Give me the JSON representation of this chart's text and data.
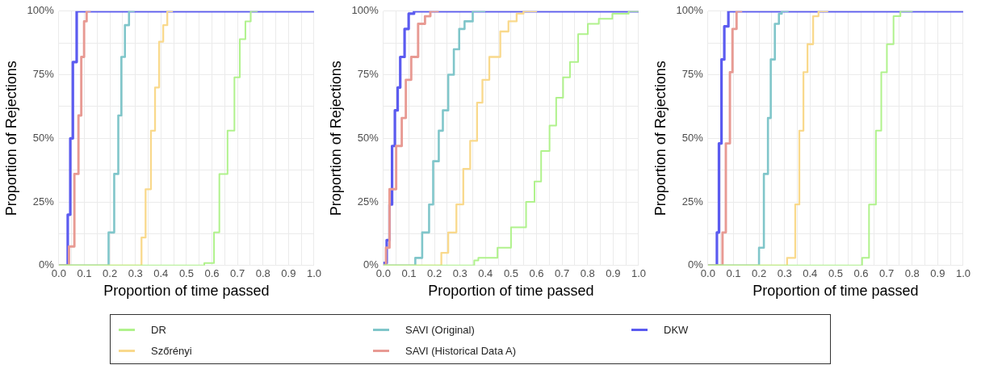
{
  "chart_data": [
    {
      "type": "step",
      "xlabel": "Proportion of time passed",
      "ylabel": "Proportion of Rejections",
      "xlim": [
        0,
        1
      ],
      "ylim": [
        0,
        100
      ],
      "grid": true,
      "legend": "bottom",
      "line_style": "solid",
      "marker": "none",
      "xticks": [
        {
          "value": 0,
          "label": "0.0"
        },
        {
          "value": 0.05,
          "label": null
        },
        {
          "value": 0.1,
          "label": "0.1"
        },
        {
          "value": 0.15,
          "label": null
        },
        {
          "value": 0.2,
          "label": "0.2"
        },
        {
          "value": 0.25,
          "label": null
        },
        {
          "value": 0.3,
          "label": "0.3"
        },
        {
          "value": 0.35,
          "label": null
        },
        {
          "value": 0.4,
          "label": "0.4"
        },
        {
          "value": 0.45,
          "label": null
        },
        {
          "value": 0.5,
          "label": "0.5"
        },
        {
          "value": 0.55,
          "label": null
        },
        {
          "value": 0.6,
          "label": "0.6"
        },
        {
          "value": 0.65,
          "label": null
        },
        {
          "value": 0.7,
          "label": "0.7"
        },
        {
          "value": 0.75,
          "label": null
        },
        {
          "value": 0.8,
          "label": "0.8"
        },
        {
          "value": 0.85,
          "label": null
        },
        {
          "value": 0.9,
          "label": "0.9"
        },
        {
          "value": 0.95,
          "label": null
        },
        {
          "value": 1,
          "label": "1.0"
        }
      ],
      "yticks": [
        {
          "value": 0,
          "label": "0%"
        },
        {
          "value": 12.5,
          "label": null
        },
        {
          "value": 25,
          "label": "25%"
        },
        {
          "value": 37.5,
          "label": null
        },
        {
          "value": 50,
          "label": "50%"
        },
        {
          "value": 62.5,
          "label": null
        },
        {
          "value": 75,
          "label": "75%"
        },
        {
          "value": 87.5,
          "label": null
        },
        {
          "value": 100,
          "label": "100%"
        }
      ],
      "series": [
        {
          "name": "DR",
          "color": "#b0f28c",
          "x": [
            0,
            0.57,
            0.57,
            0.608,
            0.629,
            0.661,
            0.688,
            0.709,
            0.731,
            0.752,
            0.779
          ],
          "values": [
            0,
            0,
            1,
            1,
            13,
            36,
            53,
            74,
            89,
            96,
            100
          ]
        },
        {
          "name": "Szőrényi",
          "color": "#f9d98c",
          "x": [
            0,
            0.324,
            0.34,
            0.361,
            0.377,
            0.393,
            0.409,
            0.425,
            0.447
          ],
          "values": [
            0,
            0,
            11,
            30,
            53,
            70,
            88,
            94.5,
            100
          ]
        },
        {
          "name": "SAVI (Original)",
          "color": "#80c6ca",
          "x": [
            0,
            0.195,
            0.217,
            0.233,
            0.245,
            0.259,
            0.275,
            0.297
          ],
          "values": [
            0,
            0,
            13,
            36,
            59,
            82,
            94.5,
            100
          ]
        },
        {
          "name": "SAVI (Historical Data A)",
          "color": "#e89a93",
          "x": [
            0,
            0.04,
            0.061,
            0.077,
            0.088,
            0.099,
            0.109,
            0.125
          ],
          "values": [
            0,
            0,
            7.5,
            36,
            59,
            82,
            96,
            100
          ]
        },
        {
          "name": "DKW",
          "color": "#5b5bf0",
          "x": [
            0,
            0.035,
            0.045,
            0.055,
            0.07,
            0.08,
            1
          ],
          "values": [
            0,
            0,
            20,
            50,
            80,
            100,
            100
          ]
        }
      ]
    },
    {
      "type": "step",
      "xlabel": "Proportion of time passed",
      "ylabel": "Proportion of Rejections",
      "xlim": [
        0,
        1
      ],
      "ylim": [
        0,
        100
      ],
      "grid": true,
      "line_style": "solid",
      "marker": "none",
      "xticks": [
        {
          "value": 0,
          "label": "0.0"
        },
        {
          "value": 0.05,
          "label": null
        },
        {
          "value": 0.1,
          "label": "0.1"
        },
        {
          "value": 0.15,
          "label": null
        },
        {
          "value": 0.2,
          "label": "0.2"
        },
        {
          "value": 0.25,
          "label": null
        },
        {
          "value": 0.3,
          "label": "0.3"
        },
        {
          "value": 0.35,
          "label": null
        },
        {
          "value": 0.4,
          "label": "0.4"
        },
        {
          "value": 0.45,
          "label": null
        },
        {
          "value": 0.5,
          "label": "0.5"
        },
        {
          "value": 0.55,
          "label": null
        },
        {
          "value": 0.6,
          "label": "0.6"
        },
        {
          "value": 0.65,
          "label": null
        },
        {
          "value": 0.7,
          "label": "0.7"
        },
        {
          "value": 0.75,
          "label": null
        },
        {
          "value": 0.8,
          "label": "0.8"
        },
        {
          "value": 0.85,
          "label": null
        },
        {
          "value": 0.9,
          "label": "0.9"
        },
        {
          "value": 0.95,
          "label": null
        },
        {
          "value": 1,
          "label": "1.0"
        }
      ],
      "yticks": [
        {
          "value": 0,
          "label": "0%"
        },
        {
          "value": 12.5,
          "label": null
        },
        {
          "value": 25,
          "label": "25%"
        },
        {
          "value": 37.5,
          "label": null
        },
        {
          "value": 50,
          "label": "50%"
        },
        {
          "value": 62.5,
          "label": null
        },
        {
          "value": 75,
          "label": "75%"
        },
        {
          "value": 87.5,
          "label": null
        },
        {
          "value": 100,
          "label": "100%"
        }
      ],
      "series": [
        {
          "color": "#b0f28c",
          "x": [
            0,
            0.356,
            0.372,
            0.447,
            0.5,
            0.559,
            0.592,
            0.618,
            0.651,
            0.677,
            0.704,
            0.731,
            0.763,
            0.801,
            0.844,
            0.897,
            0.961,
            1
          ],
          "values": [
            0,
            0,
            2,
            3,
            7,
            15,
            25,
            33,
            45,
            55,
            66,
            74,
            80,
            91,
            95,
            97,
            99,
            100
          ]
        },
        {
          "color": "#f9d98c",
          "x": [
            0,
            0.227,
            0.254,
            0.286,
            0.313,
            0.34,
            0.367,
            0.388,
            0.415,
            0.458,
            0.49,
            0.522,
            0.549,
            0.602
          ],
          "values": [
            0,
            0,
            5,
            13,
            24,
            38,
            49,
            64,
            73,
            82,
            92,
            96,
            99,
            100
          ]
        },
        {
          "color": "#80c6ca",
          "x": [
            0,
            0.125,
            0.152,
            0.179,
            0.195,
            0.217,
            0.233,
            0.254,
            0.276,
            0.297,
            0.318,
            0.35,
            0.399
          ],
          "values": [
            0,
            0,
            3,
            13,
            24,
            41,
            53,
            61,
            75,
            85,
            93,
            96,
            100
          ]
        },
        {
          "color": "#e89a93",
          "x": [
            0,
            0.01,
            0.024,
            0.05,
            0.072,
            0.088,
            0.109,
            0.136,
            0.163,
            0.184,
            0.217
          ],
          "values": [
            0,
            0,
            7,
            30,
            47,
            58,
            73,
            82,
            95,
            98,
            100
          ]
        },
        {
          "color": "#5b5bf0",
          "x": [
            0,
            0.013,
            0.024,
            0.034,
            0.045,
            0.056,
            0.066,
            0.083,
            0.099,
            0.12,
            0.174,
            1
          ],
          "values": [
            0,
            1,
            10,
            24,
            47,
            61,
            70,
            82,
            93,
            99,
            100,
            100
          ]
        }
      ]
    },
    {
      "type": "step",
      "xlabel": "Proportion of time passed",
      "ylabel": "Proportion of Rejections",
      "xlim": [
        0,
        1
      ],
      "ylim": [
        0,
        100
      ],
      "grid": true,
      "line_style": "solid",
      "marker": "none",
      "xticks": [
        {
          "value": 0,
          "label": "0.0"
        },
        {
          "value": 0.05,
          "label": null
        },
        {
          "value": 0.1,
          "label": "0.1"
        },
        {
          "value": 0.15,
          "label": null
        },
        {
          "value": 0.2,
          "label": "0.2"
        },
        {
          "value": 0.25,
          "label": null
        },
        {
          "value": 0.3,
          "label": "0.3"
        },
        {
          "value": 0.35,
          "label": null
        },
        {
          "value": 0.4,
          "label": "0.4"
        },
        {
          "value": 0.45,
          "label": null
        },
        {
          "value": 0.5,
          "label": "0.5"
        },
        {
          "value": 0.55,
          "label": null
        },
        {
          "value": 0.6,
          "label": "0.6"
        },
        {
          "value": 0.65,
          "label": null
        },
        {
          "value": 0.7,
          "label": "0.7"
        },
        {
          "value": 0.75,
          "label": null
        },
        {
          "value": 0.8,
          "label": "0.8"
        },
        {
          "value": 0.85,
          "label": null
        },
        {
          "value": 0.9,
          "label": "0.9"
        },
        {
          "value": 0.95,
          "label": null
        },
        {
          "value": 1,
          "label": "1.0"
        }
      ],
      "yticks": [
        {
          "value": 0,
          "label": "0%"
        },
        {
          "value": 12.5,
          "label": null
        },
        {
          "value": 25,
          "label": "25%"
        },
        {
          "value": 37.5,
          "label": null
        },
        {
          "value": 50,
          "label": "50%"
        },
        {
          "value": 62.5,
          "label": null
        },
        {
          "value": 75,
          "label": "75%"
        },
        {
          "value": 87.5,
          "label": null
        },
        {
          "value": 100,
          "label": "100%"
        }
      ],
      "series": [
        {
          "color": "#b0f28c",
          "x": [
            0,
            0.604,
            0.631,
            0.658,
            0.679,
            0.701,
            0.727,
            0.754,
            0.802
          ],
          "values": [
            0,
            0,
            3,
            24,
            53,
            76,
            87,
            98,
            100
          ]
        },
        {
          "color": "#f9d98c",
          "x": [
            0,
            0.31,
            0.342,
            0.358,
            0.374,
            0.39,
            0.412,
            0.433,
            0.471
          ],
          "values": [
            0,
            0,
            3,
            24,
            53,
            76,
            87,
            98,
            100
          ]
        },
        {
          "color": "#80c6ca",
          "x": [
            0,
            0.2,
            0.219,
            0.235,
            0.246,
            0.262,
            0.278,
            0.289,
            0.316
          ],
          "values": [
            0,
            0,
            7,
            36,
            58,
            81,
            95,
            99,
            100
          ]
        },
        {
          "color": "#e89a93",
          "x": [
            0,
            0.057,
            0.07,
            0.086,
            0.096,
            0.112,
            0.134
          ],
          "values": [
            0,
            0,
            13,
            48,
            76,
            93,
            100
          ]
        },
        {
          "color": "#5b5bf0",
          "x": [
            0,
            0.035,
            0.043,
            0.053,
            0.064,
            0.08,
            0.091,
            1
          ],
          "values": [
            0,
            0,
            13,
            48,
            81,
            94,
            100,
            100
          ]
        }
      ]
    }
  ]
}
